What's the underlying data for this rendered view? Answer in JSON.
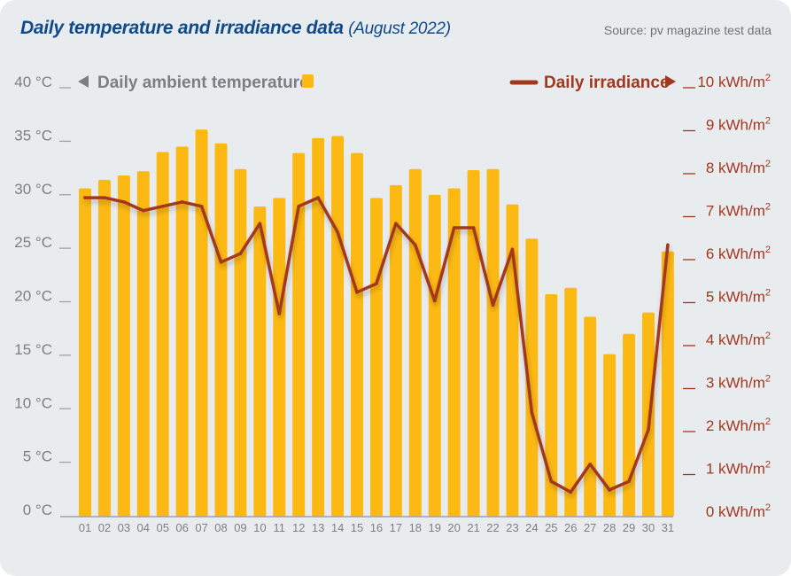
{
  "header": {
    "title": "Daily temperature and irradiance data",
    "subtitle": "(August 2022)",
    "source": "Source: pv magazine test data"
  },
  "colors": {
    "bar": "#fdb913",
    "line": "#a3371d",
    "left_axis_text": "#7b7f84",
    "right_axis_text": "#a3371d",
    "title": "#0f4a8a"
  },
  "chart_data": {
    "type": "bar",
    "title": "Daily temperature and irradiance data (August 2022)",
    "categories": [
      "01",
      "02",
      "03",
      "04",
      "05",
      "06",
      "07",
      "08",
      "09",
      "10",
      "11",
      "12",
      "13",
      "14",
      "15",
      "16",
      "17",
      "18",
      "19",
      "20",
      "21",
      "22",
      "23",
      "24",
      "25",
      "26",
      "27",
      "28",
      "29",
      "30",
      "31"
    ],
    "series": [
      {
        "name": "Daily ambient temperature",
        "type": "bar",
        "axis": "left",
        "unit": "°C",
        "values": [
          30.6,
          31.4,
          31.8,
          32.2,
          34.0,
          34.5,
          36.1,
          34.8,
          32.4,
          28.9,
          29.7,
          33.9,
          35.3,
          35.5,
          33.9,
          29.7,
          30.9,
          32.4,
          30.0,
          30.6,
          32.3,
          32.4,
          29.1,
          25.9,
          20.7,
          21.3,
          18.6,
          15.1,
          17.0,
          19.0,
          24.7
        ]
      },
      {
        "name": "Daily irradiance",
        "type": "line",
        "axis": "right",
        "unit": "kWh/m²",
        "values": [
          7.4,
          7.4,
          7.3,
          7.1,
          7.2,
          7.3,
          7.2,
          5.9,
          6.1,
          6.8,
          4.7,
          7.2,
          7.4,
          6.6,
          5.2,
          5.4,
          6.8,
          6.3,
          5.0,
          6.7,
          6.7,
          4.9,
          6.2,
          2.4,
          0.8,
          0.55,
          1.2,
          0.6,
          0.8,
          2.0,
          6.3
        ]
      }
    ],
    "left_axis": {
      "ylim": [
        0,
        40
      ],
      "ticks": [
        0,
        5,
        10,
        15,
        20,
        25,
        30,
        35,
        40
      ],
      "tick_labels": [
        "0 °C",
        "5 °C",
        "10 °C",
        "15 °C",
        "20 °C",
        "25 °C",
        "30 °C",
        "35 °C",
        "40 °C"
      ]
    },
    "right_axis": {
      "ylim": [
        0,
        10
      ],
      "ticks": [
        0,
        1,
        2,
        3,
        4,
        5,
        6,
        7,
        8,
        9,
        10
      ],
      "tick_labels": [
        "0 kWh/m",
        "1 kWh/m",
        "2 kWh/m",
        "3 kWh/m",
        "4 kWh/m",
        "5 kWh/m",
        "6 kWh/m",
        "7 kWh/m",
        "8 kWh/m",
        "9 kWh/m",
        "10 kWh/m"
      ],
      "tick_superscript": "2"
    },
    "legend": {
      "left_label": "Daily ambient temperature",
      "right_label": "Daily irradiance",
      "placement": "top"
    },
    "grid": false
  }
}
